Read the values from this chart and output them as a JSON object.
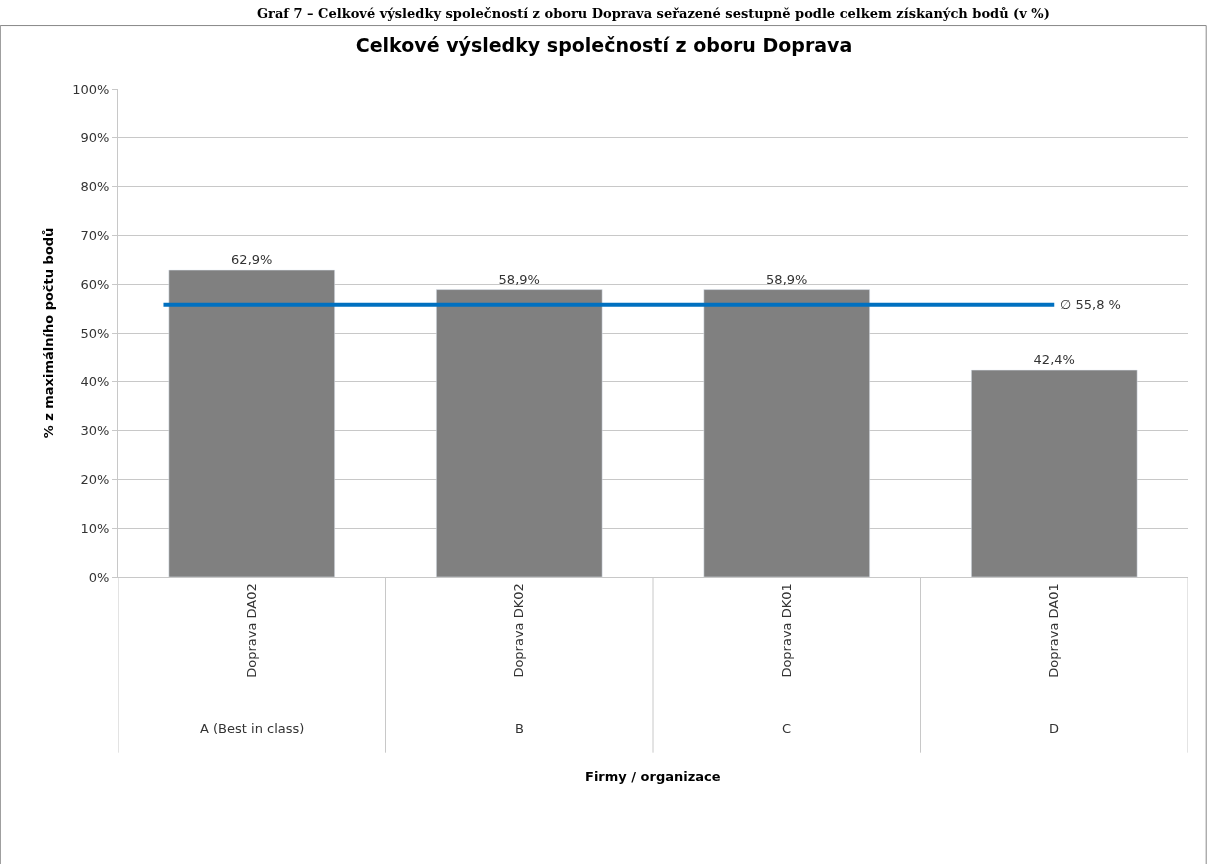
{
  "chart_data": {
    "type": "bar",
    "title": "Celkové výsledky společností z oboru Doprava",
    "ylabel": "% z maximálního počtu bodů",
    "categories": [
      "Doprava DA02",
      "Doprava DK02",
      "Doprava DK01",
      "Doprava DA01"
    ],
    "values": [
      62.9,
      58.9,
      58.9,
      42.4
    ],
    "color": "#808080",
    "value_labels": [
      "62,9%",
      "58,9%",
      "58,9%",
      "42,4%"
    ],
    "ylim": [
      0,
      100
    ],
    "yticks": [
      {
        "value": 0,
        "label": "0%"
      },
      {
        "value": 10,
        "label": "10%"
      },
      {
        "value": 20,
        "label": "20%"
      },
      {
        "value": 30,
        "label": "30%"
      },
      {
        "value": 40,
        "label": "40%"
      },
      {
        "value": 50,
        "label": "50%"
      },
      {
        "value": 60,
        "label": "60%"
      },
      {
        "value": 70,
        "label": "70%"
      },
      {
        "value": 80,
        "label": "80%"
      },
      {
        "value": 90,
        "label": "90%"
      },
      {
        "value": 100,
        "label": "100%"
      }
    ],
    "grid": "y",
    "ref_lines": [
      {
        "axis": "y",
        "value": 55.8,
        "label": "∅ 55,8 %",
        "color": "#0070c0"
      }
    ],
    "annotations": [
      "Graf 7 – Celkové výsledky společností z oboru Doprava seřazené sestupně podle celkem získaných bodů (v %)",
      "A (Best in class)",
      "B",
      "C",
      "D",
      "Firmy / organizace"
    ]
  }
}
